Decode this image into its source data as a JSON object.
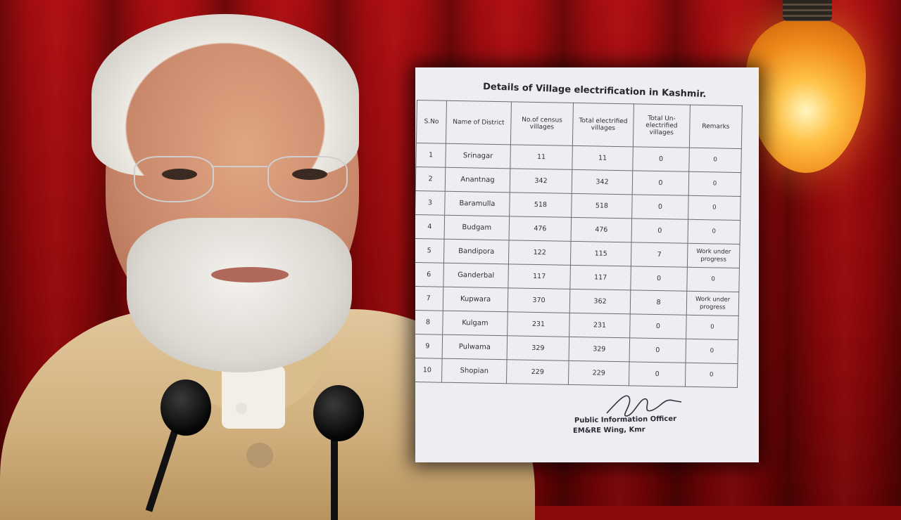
{
  "document": {
    "title": "Details of Village electrification in Kashmir.",
    "columns": [
      "S.No",
      "Name of District",
      "No.of census villages",
      "Total electrified villages",
      "Total Un-electrified villages",
      "Remarks"
    ],
    "rows": [
      {
        "sno": "1",
        "district": "Srinagar",
        "census": "11",
        "electrified": "11",
        "unelectrified": "0",
        "remarks": "0"
      },
      {
        "sno": "2",
        "district": "Anantnag",
        "census": "342",
        "electrified": "342",
        "unelectrified": "0",
        "remarks": "0"
      },
      {
        "sno": "3",
        "district": "Baramulla",
        "census": "518",
        "electrified": "518",
        "unelectrified": "0",
        "remarks": "0"
      },
      {
        "sno": "4",
        "district": "Budgam",
        "census": "476",
        "electrified": "476",
        "unelectrified": "0",
        "remarks": "0"
      },
      {
        "sno": "5",
        "district": "Bandipora",
        "census": "122",
        "electrified": "115",
        "unelectrified": "7",
        "remarks": "Work under progress"
      },
      {
        "sno": "6",
        "district": "Ganderbal",
        "census": "117",
        "electrified": "117",
        "unelectrified": "0",
        "remarks": "0"
      },
      {
        "sno": "7",
        "district": "Kupwara",
        "census": "370",
        "electrified": "362",
        "unelectrified": "8",
        "remarks": "Work under progress"
      },
      {
        "sno": "8",
        "district": "Kulgam",
        "census": "231",
        "electrified": "231",
        "unelectrified": "0",
        "remarks": "0"
      },
      {
        "sno": "9",
        "district": "Pulwama",
        "census": "329",
        "electrified": "329",
        "unelectrified": "0",
        "remarks": "0"
      },
      {
        "sno": "10",
        "district": "Shopian",
        "census": "229",
        "electrified": "229",
        "unelectrified": "0",
        "remarks": "0"
      }
    ],
    "signatory_title": "Public Information Officer",
    "signatory_office": "EM&RE Wing, Kmr"
  }
}
